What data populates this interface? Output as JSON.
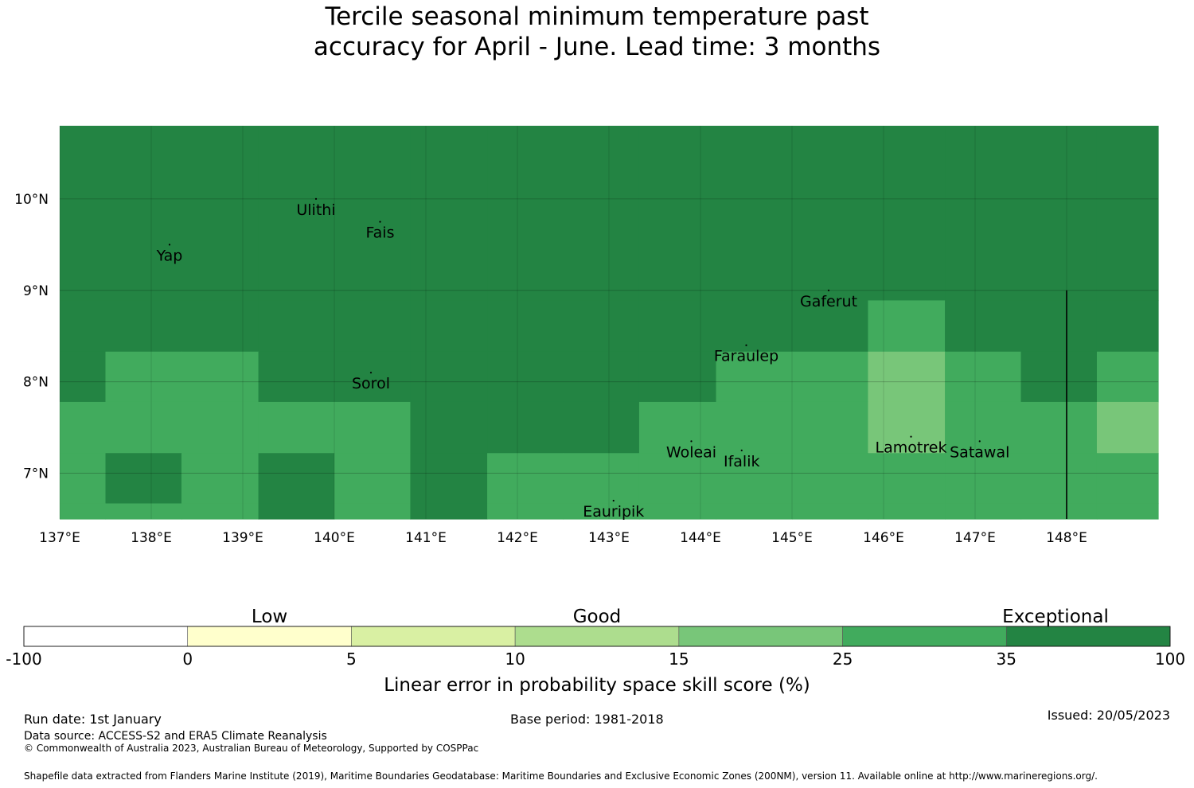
{
  "title": {
    "line1": "Tercile seasonal minimum temperature past",
    "line2": "accuracy for April - June. Lead time: 3 months"
  },
  "map": {
    "lon_range": [
      137,
      149
    ],
    "lat_range": [
      6.5,
      10.8
    ],
    "lon_ticks": [
      {
        "value": 137,
        "label": "137°E"
      },
      {
        "value": 138,
        "label": "138°E"
      },
      {
        "value": 139,
        "label": "139°E"
      },
      {
        "value": 140,
        "label": "140°E"
      },
      {
        "value": 141,
        "label": "141°E"
      },
      {
        "value": 142,
        "label": "142°E"
      },
      {
        "value": 143,
        "label": "143°E"
      },
      {
        "value": 144,
        "label": "144°E"
      },
      {
        "value": 145,
        "label": "145°E"
      },
      {
        "value": 146,
        "label": "146°E"
      },
      {
        "value": 147,
        "label": "147°E"
      },
      {
        "value": 148,
        "label": "148°E"
      }
    ],
    "lat_ticks": [
      {
        "value": 10,
        "label": "10°N"
      },
      {
        "value": 9,
        "label": "9°N"
      },
      {
        "value": 8,
        "label": "8°N"
      },
      {
        "value": 7,
        "label": "7°N"
      }
    ],
    "grid": {
      "lon_edges": [
        137.0,
        137.5,
        138.33,
        139.17,
        140.0,
        140.83,
        141.67,
        142.5,
        143.33,
        144.17,
        145.0,
        145.83,
        146.67,
        147.5,
        148.33,
        149.0
      ],
      "lat_edges": [
        6.5,
        6.67,
        7.22,
        7.78,
        8.33,
        8.89,
        10.8
      ],
      "rows_top_to_bottom": [
        [
          "exceptional",
          "exceptional",
          "exceptional",
          "exceptional",
          "exceptional",
          "exceptional",
          "exceptional",
          "exceptional",
          "exceptional",
          "exceptional",
          "exceptional",
          "exceptional",
          "exceptional",
          "exceptional",
          "exceptional"
        ],
        [
          "exceptional",
          "exceptional",
          "exceptional",
          "exceptional",
          "exceptional",
          "exceptional",
          "exceptional",
          "exceptional",
          "exceptional",
          "exceptional",
          "exceptional",
          "good_high",
          "exceptional",
          "exceptional",
          "exceptional"
        ],
        [
          "exceptional",
          "good_high",
          "good_high",
          "exceptional",
          "exceptional",
          "exceptional",
          "exceptional",
          "exceptional",
          "exceptional",
          "good_high",
          "good_high",
          "good_low",
          "good_high",
          "exceptional",
          "good_high"
        ],
        [
          "good_high",
          "good_high",
          "good_high",
          "good_high",
          "good_high",
          "exceptional",
          "exceptional",
          "exceptional",
          "good_high",
          "good_high",
          "good_high",
          "good_low",
          "good_high",
          "good_high",
          "good_low"
        ],
        [
          "good_high",
          "exceptional",
          "good_high",
          "exceptional",
          "good_high",
          "exceptional",
          "good_high",
          "good_high",
          "good_high",
          "good_high",
          "good_high",
          "good_high",
          "good_high",
          "good_high",
          "good_high"
        ],
        [
          "good_high",
          "good_high",
          "good_high",
          "exceptional",
          "good_high",
          "exceptional",
          "good_high",
          "good_high",
          "good_high",
          "good_high",
          "good_high",
          "good_high",
          "good_high",
          "good_high",
          "good_high"
        ]
      ]
    },
    "places": [
      {
        "name": "Ulithi",
        "lon": 139.8,
        "lat": 10.0
      },
      {
        "name": "Fais",
        "lon": 140.5,
        "lat": 9.75
      },
      {
        "name": "Yap",
        "lon": 138.2,
        "lat": 9.5
      },
      {
        "name": "Gaferut",
        "lon": 145.4,
        "lat": 9.0
      },
      {
        "name": "Faraulep",
        "lon": 144.5,
        "lat": 8.4
      },
      {
        "name": "Sorol",
        "lon": 140.4,
        "lat": 8.1
      },
      {
        "name": "Woleai",
        "lon": 143.9,
        "lat": 7.35
      },
      {
        "name": "Ifalik",
        "lon": 144.45,
        "lat": 7.25
      },
      {
        "name": "Lamotrek",
        "lon": 146.3,
        "lat": 7.4
      },
      {
        "name": "Satawal",
        "lon": 147.05,
        "lat": 7.35
      },
      {
        "name": "Eauripik",
        "lon": 143.05,
        "lat": 6.7
      }
    ],
    "boundary_lon": 148.0
  },
  "legend": {
    "categories": [
      {
        "label": "Low",
        "center_tick": 1
      },
      {
        "label": "Good",
        "center_tick": 3
      },
      {
        "label": "Exceptional",
        "center_tick": 6.3
      }
    ],
    "bins": [
      {
        "key": "none",
        "color": "#ffffff"
      },
      {
        "key": "low",
        "color": "#ffffcc"
      },
      {
        "key": "good_very_low",
        "color": "#d9f0a3"
      },
      {
        "key": "good_low_mid",
        "color": "#addd8e"
      },
      {
        "key": "good_low",
        "color": "#78c679"
      },
      {
        "key": "good_high",
        "color": "#41ab5d"
      },
      {
        "key": "exceptional",
        "color": "#238443"
      }
    ],
    "tick_labels": [
      "-100",
      "0",
      "5",
      "10",
      "15",
      "25",
      "35",
      "100"
    ],
    "axis_label": "Linear error in probability space skill score (%)"
  },
  "colors": {
    "exceptional": "#238443",
    "good_high": "#41ab5d",
    "good_low": "#78c679"
  },
  "footer": {
    "run_date": "Run date: 1st January",
    "base_period": "Base period: 1981-2018",
    "issued": "Issued: 20/05/2023",
    "data_source": "Data source: ACCESS-S2 and ERA5 Climate Reanalysis",
    "copyright": "© Commonwealth of Australia 2023, Australian Bureau of Meteorology, Supported by COSPPac",
    "shapefile": "Shapefile data extracted from Flanders Marine Institute (2019), Maritime Boundaries Geodatabase: Maritime Boundaries and Exclusive Economic Zones (200NM), version 11. Available online at http://www.marineregions.org/."
  }
}
